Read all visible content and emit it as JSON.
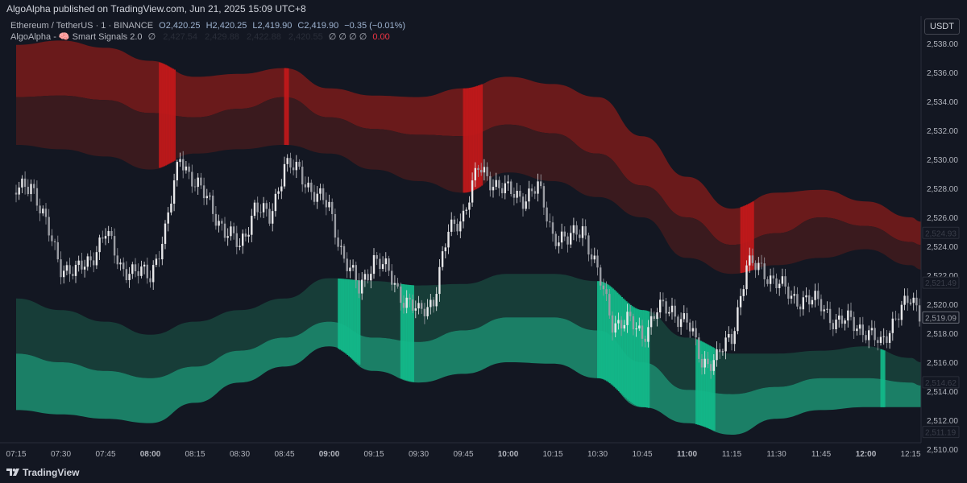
{
  "publish_line": "AlgoAlpha published on TradingView.com, Jun 21, 2025 15:09 UTC+8",
  "legend": {
    "symbol": "Ethereum / TetherUS · 1 · BINANCE",
    "open": "O2,420.25",
    "high": "H2,420.25",
    "low": "L2,419.90",
    "close": "C2,419.90",
    "change": "−0.35 (−0.01%)",
    "indicator": "AlgoAlpha - 🧠 Smart Signals 2.0",
    "indicator_values": [
      "∅",
      "2,427.54",
      "2,429.88",
      "2,422.88",
      "2,420.55",
      "∅ ∅ ∅ ∅"
    ],
    "indicator_last": "0.00"
  },
  "currency_button": "USDT",
  "footer_brand": "TradingView",
  "colors": {
    "background": "#131722",
    "red_band_upper": "#6a1a1b",
    "red_band_lower": "#3a1a1e",
    "green_band_upper": "#173d38",
    "green_band_lower": "#1b7f66",
    "red_signal": "#c2181b",
    "green_signal": "#13b98a",
    "candle_up": "#e8e8ea",
    "candle_down": "#9a9ca3"
  },
  "chart_data": {
    "type": "candlestick",
    "ylim": [
      2509,
      2539
    ],
    "y_ticks": [
      "2,510.00",
      "2,512.00",
      "2,514.00",
      "2,516.00",
      "2,518.00",
      "2,520.00",
      "2,522.00",
      "2,524.00",
      "2,526.00",
      "2,528.00",
      "2,530.00",
      "2,532.00",
      "2,534.00",
      "2,536.00",
      "2,538.00"
    ],
    "x_ticks": [
      "07:15",
      "07:30",
      "07:45",
      "08:00",
      "08:15",
      "08:30",
      "08:45",
      "09:00",
      "09:15",
      "09:30",
      "09:45",
      "10:00",
      "10:15",
      "10:30",
      "10:45",
      "11:00",
      "11:15",
      "11:30",
      "11:45",
      "12:00",
      "12:15"
    ],
    "price_labels": [
      {
        "value": 2524.93,
        "text": "2,524.93"
      },
      {
        "value": 2521.49,
        "text": "2,521.49"
      },
      {
        "value": 2519.09,
        "text": "2,519.09",
        "current": true
      },
      {
        "value": 2514.62,
        "text": "2,514.62"
      },
      {
        "value": 2511.19,
        "text": "2,511.19"
      }
    ],
    "close_path_5min": {
      "start": "07:15",
      "step_minutes": 5,
      "values": [
        2527.7,
        2528.5,
        2525.4,
        2522.7,
        2522.1,
        2523.2,
        2524.9,
        2522.7,
        2522.1,
        2522.1,
        2524.9,
        2530.4,
        2528.2,
        2527.1,
        2524.9,
        2524.1,
        2526.6,
        2526.0,
        2529.6,
        2529.1,
        2527.7,
        2526.6,
        2523.2,
        2521.0,
        2523.2,
        2522.1,
        2520.4,
        2519.3,
        2520.4,
        2524.9,
        2526.3,
        2529.3,
        2528.5,
        2527.7,
        2527.4,
        2528.0,
        2524.9,
        2524.3,
        2525.4,
        2522.1,
        2518.8,
        2518.8,
        2517.9,
        2519.6,
        2519.6,
        2518.8,
        2516.0,
        2516.3,
        2517.7,
        2522.7,
        2522.4,
        2521.6,
        2520.4,
        2520.4,
        2519.9,
        2518.8,
        2518.8,
        2518.2,
        2517.1,
        2519.3,
        2520.2,
        2519.1
      ]
    },
    "bands_15min": {
      "start": "07:15",
      "step_minutes": 15,
      "red_outer": [
        2537.9,
        2538.2,
        2537.7,
        2536.8,
        2535.7,
        2535.9,
        2536.3,
        2534.9,
        2534.4,
        2534.3,
        2534.9,
        2535.7,
        2535.2,
        2534.3,
        2531.6,
        2528.8,
        2526.6,
        2527.7,
        2527.9,
        2527.1,
        2526.0,
        2525.7
      ],
      "red_mid": [
        2534.3,
        2534.4,
        2534.1,
        2533.2,
        2532.9,
        2533.5,
        2534.3,
        2532.9,
        2532.1,
        2531.7,
        2531.6,
        2532.4,
        2531.8,
        2530.4,
        2528.2,
        2526.0,
        2524.1,
        2524.9,
        2526.0,
        2525.4,
        2524.3,
        2524.1
      ],
      "red_inner": [
        2531.0,
        2530.7,
        2530.2,
        2529.3,
        2530.4,
        2530.7,
        2531.0,
        2530.4,
        2529.3,
        2528.5,
        2527.7,
        2529.1,
        2528.5,
        2527.4,
        2526.0,
        2523.2,
        2522.1,
        2522.7,
        2523.2,
        2523.8,
        2522.7,
        2522.4
      ],
      "green_inner": [
        2520.4,
        2519.6,
        2518.8,
        2517.9,
        2518.8,
        2519.6,
        2520.4,
        2521.8,
        2521.6,
        2521.3,
        2521.4,
        2522.1,
        2522.1,
        2521.6,
        2519.6,
        2517.7,
        2516.6,
        2516.6,
        2516.8,
        2517.1,
        2516.3,
        2516.0
      ],
      "green_mid": [
        2516.6,
        2516.0,
        2515.4,
        2514.9,
        2515.7,
        2516.8,
        2517.7,
        2518.8,
        2517.7,
        2517.4,
        2518.2,
        2519.1,
        2519.1,
        2518.2,
        2516.0,
        2514.1,
        2513.8,
        2514.3,
        2514.9,
        2514.9,
        2514.6,
        2514.4
      ],
      "green_outer": [
        2512.7,
        2512.4,
        2512.1,
        2511.8,
        2513.2,
        2514.6,
        2515.7,
        2517.1,
        2515.4,
        2514.6,
        2515.2,
        2516.0,
        2515.9,
        2514.9,
        2512.9,
        2511.8,
        2511.0,
        2512.1,
        2512.7,
        2512.9,
        2512.9,
        2512.9
      ]
    },
    "signals": [
      {
        "type": "bearish",
        "from": "08:03",
        "to": "08:08"
      },
      {
        "type": "bearish",
        "from": "08:45",
        "to": "08:46"
      },
      {
        "type": "bearish",
        "from": "09:45",
        "to": "09:51"
      },
      {
        "type": "bearish",
        "from": "11:18",
        "to": "11:22"
      },
      {
        "type": "bullish",
        "from": "09:03",
        "to": "09:10"
      },
      {
        "type": "bullish",
        "from": "09:24",
        "to": "09:28"
      },
      {
        "type": "bullish",
        "from": "10:30",
        "to": "10:47"
      },
      {
        "type": "bullish",
        "from": "11:03",
        "to": "11:09"
      },
      {
        "type": "bullish",
        "from": "12:05",
        "to": "12:06"
      }
    ]
  }
}
